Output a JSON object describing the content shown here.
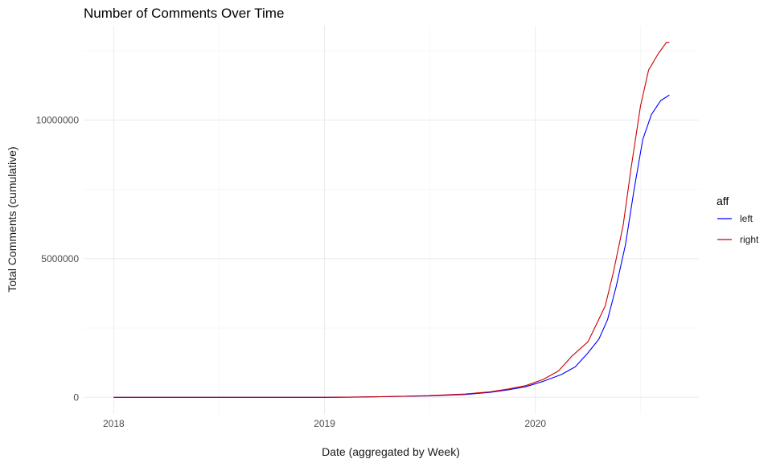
{
  "chart_data": {
    "type": "line",
    "title": "Number of Comments Over Time",
    "xlabel": "Date (aggregated by Week)",
    "ylabel": "Total Comments (cumulative)",
    "x_ticks": [
      {
        "value": "2018-01-01",
        "label": "2018"
      },
      {
        "value": "2019-01-01",
        "label": "2019"
      },
      {
        "value": "2020-01-01",
        "label": "2020"
      }
    ],
    "xlim": [
      "2017-11-10",
      "2020-10-10"
    ],
    "y_ticks": [
      {
        "value": 0,
        "label": "0"
      },
      {
        "value": 5000000,
        "label": "5000000"
      },
      {
        "value": 10000000,
        "label": "10000000"
      }
    ],
    "ylim": [
      -600000,
      13400000
    ],
    "grid": true,
    "legend": {
      "title": "aff",
      "position": "right"
    },
    "series": [
      {
        "name": "left",
        "color": "#0000ff",
        "points": [
          [
            "2018-01-01",
            0
          ],
          [
            "2018-07-01",
            0
          ],
          [
            "2019-01-01",
            0
          ],
          [
            "2019-03-01",
            10000
          ],
          [
            "2019-05-01",
            30000
          ],
          [
            "2019-07-01",
            50000
          ],
          [
            "2019-09-01",
            100000
          ],
          [
            "2019-10-15",
            180000
          ],
          [
            "2019-11-15",
            270000
          ],
          [
            "2019-12-15",
            380000
          ],
          [
            "2020-01-15",
            580000
          ],
          [
            "2020-02-15",
            820000
          ],
          [
            "2020-03-10",
            1100000
          ],
          [
            "2020-04-01",
            1600000
          ],
          [
            "2020-04-20",
            2100000
          ],
          [
            "2020-05-05",
            2800000
          ],
          [
            "2020-05-20",
            4000000
          ],
          [
            "2020-06-05",
            5500000
          ],
          [
            "2020-06-20",
            7500000
          ],
          [
            "2020-07-05",
            9300000
          ],
          [
            "2020-07-20",
            10200000
          ],
          [
            "2020-08-05",
            10700000
          ],
          [
            "2020-08-20",
            10900000
          ]
        ]
      },
      {
        "name": "right",
        "color": "#cc0000",
        "points": [
          [
            "2018-01-01",
            0
          ],
          [
            "2018-07-01",
            0
          ],
          [
            "2019-01-01",
            0
          ],
          [
            "2019-03-01",
            10000
          ],
          [
            "2019-05-01",
            30000
          ],
          [
            "2019-07-01",
            60000
          ],
          [
            "2019-09-01",
            120000
          ],
          [
            "2019-10-15",
            200000
          ],
          [
            "2019-11-15",
            300000
          ],
          [
            "2019-12-15",
            420000
          ],
          [
            "2020-01-15",
            650000
          ],
          [
            "2020-02-10",
            950000
          ],
          [
            "2020-03-05",
            1500000
          ],
          [
            "2020-04-01",
            2000000
          ],
          [
            "2020-04-15",
            2600000
          ],
          [
            "2020-05-01",
            3300000
          ],
          [
            "2020-05-15",
            4500000
          ],
          [
            "2020-06-01",
            6200000
          ],
          [
            "2020-06-15",
            8300000
          ],
          [
            "2020-07-01",
            10500000
          ],
          [
            "2020-07-15",
            11800000
          ],
          [
            "2020-08-01",
            12400000
          ],
          [
            "2020-08-15",
            12800000
          ],
          [
            "2020-08-20",
            12800000
          ]
        ]
      }
    ]
  }
}
